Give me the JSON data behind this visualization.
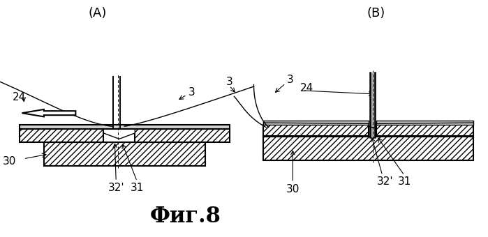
{
  "bg_color": "#ffffff",
  "line_color": "#000000",
  "title": "Фиг.8",
  "title_fontsize": 22,
  "label_A": "(A)",
  "label_B": "(B)",
  "fontsize_label": 11
}
